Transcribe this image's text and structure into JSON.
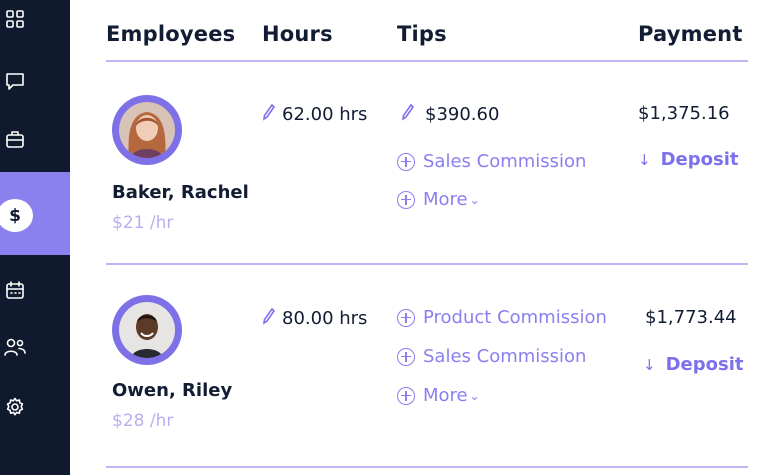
{
  "table": {
    "headers": {
      "employees": "Employees",
      "hours": "Hours",
      "tips": "Tips",
      "payment": "Payment"
    }
  },
  "rows": [
    {
      "name": "Baker, Rachel",
      "rate": "$21 /hr",
      "hours": "62.00 hrs",
      "tip_amount": "$390.60",
      "tip_actions": [
        "Sales Commission",
        "More"
      ],
      "payment": "$1,375.16",
      "payment_method": "Deposit"
    },
    {
      "name": "Owen, Riley",
      "rate": "$28 /hr",
      "hours": "80.00 hrs",
      "tip_actions": [
        "Product Commission",
        "Sales Commission",
        "More"
      ],
      "payment": "$1,773.44",
      "payment_method": "Deposit"
    }
  ],
  "sidebar": {
    "items": [
      "grid-icon",
      "message-icon",
      "briefcase-icon",
      "dollar-icon",
      "calendar-icon",
      "people-icon",
      "gear-icon"
    ],
    "active": "dollar-icon",
    "active_symbol": "$"
  },
  "colors": {
    "sidebar": "#0f1a2e",
    "accent": "#8b80ee",
    "link": "#8b7ff0",
    "rate": "#b9adf3"
  }
}
